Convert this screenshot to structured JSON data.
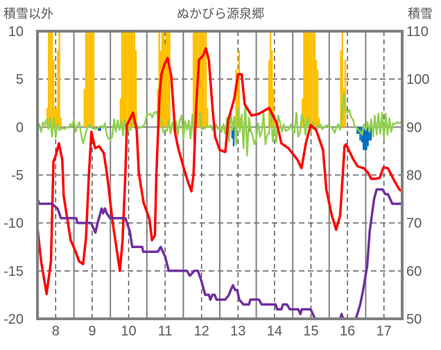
{
  "chart_data": {
    "type": "bar+line",
    "title": "ぬかびら源泉郷",
    "ylabel_left": "積雪以外",
    "ylabel_right": "積雪",
    "xlim": [
      7.5,
      17.5
    ],
    "ylim_left": [
      -20,
      10
    ],
    "ylim_right": [
      50,
      110
    ],
    "x_ticks": [
      "8",
      "9",
      "10",
      "11",
      "12",
      "13",
      "14",
      "15",
      "16",
      "17"
    ],
    "y_ticks_left": [
      "10",
      "5",
      "0",
      "-5",
      "-10",
      "-15",
      "-20"
    ],
    "y_ticks_right": [
      "110",
      "100",
      "90",
      "80",
      "70",
      "60",
      "50"
    ],
    "grid": true,
    "colors": {
      "precip": "#FFC000",
      "snow_loss": "#0070C0",
      "wind": "#92D050",
      "temp": "#FF0000",
      "snow_depth": "#7030A0",
      "axis": "#808080"
    },
    "precip_bars": [
      [
        7.77,
        2
      ],
      [
        7.81,
        10
      ],
      [
        7.85,
        10
      ],
      [
        7.9,
        10
      ],
      [
        7.94,
        7
      ],
      [
        7.98,
        2
      ],
      [
        8.02,
        2
      ],
      [
        8.06,
        8
      ],
      [
        8.1,
        10
      ],
      [
        8.14,
        1
      ],
      [
        8.79,
        4
      ],
      [
        8.83,
        10
      ],
      [
        8.87,
        10
      ],
      [
        8.92,
        10
      ],
      [
        8.96,
        10
      ],
      [
        9.0,
        10
      ],
      [
        9.04,
        10
      ],
      [
        9.78,
        3
      ],
      [
        9.82,
        10
      ],
      [
        9.86,
        10
      ],
      [
        9.9,
        10
      ],
      [
        9.94,
        10
      ],
      [
        9.99,
        10
      ],
      [
        10.03,
        10
      ],
      [
        10.07,
        10
      ],
      [
        10.11,
        10
      ],
      [
        10.16,
        10
      ],
      [
        10.2,
        8
      ],
      [
        10.8,
        4
      ],
      [
        10.84,
        10
      ],
      [
        10.88,
        8
      ],
      [
        10.92,
        10
      ],
      [
        10.96,
        10
      ],
      [
        11.0,
        8.7
      ],
      [
        11.04,
        10
      ],
      [
        11.08,
        10
      ],
      [
        11.12,
        10
      ],
      [
        11.78,
        10
      ],
      [
        11.82,
        10
      ],
      [
        11.86,
        10
      ],
      [
        11.9,
        10
      ],
      [
        11.95,
        10
      ],
      [
        11.99,
        10
      ],
      [
        12.03,
        10
      ],
      [
        12.07,
        10
      ],
      [
        12.12,
        10
      ],
      [
        12.16,
        2
      ],
      [
        12.95,
        6
      ],
      [
        12.99,
        5
      ],
      [
        13.03,
        8
      ],
      [
        13.07,
        1
      ],
      [
        13.85,
        7
      ],
      [
        13.89,
        10
      ],
      [
        13.93,
        8
      ],
      [
        13.97,
        4
      ],
      [
        14.01,
        1
      ],
      [
        14.05,
        0.7
      ],
      [
        14.77,
        3
      ],
      [
        14.81,
        10
      ],
      [
        14.85,
        10
      ],
      [
        14.89,
        10
      ],
      [
        14.93,
        10
      ],
      [
        14.97,
        10
      ],
      [
        15.01,
        10
      ],
      [
        15.06,
        10
      ],
      [
        15.1,
        10
      ],
      [
        15.14,
        7
      ],
      [
        15.18,
        6
      ],
      [
        15.22,
        1
      ],
      [
        15.82,
        8
      ],
      [
        15.86,
        10
      ],
      [
        15.9,
        4
      ],
      [
        15.94,
        7
      ]
    ],
    "snow_loss_bars": [
      [
        9.18,
        -0.4
      ],
      [
        9.22,
        -0.4
      ],
      [
        12.84,
        -1.2
      ],
      [
        12.88,
        -2
      ],
      [
        13.3,
        -0.5
      ],
      [
        13.34,
        -0.4
      ],
      [
        16.27,
        -0.7
      ],
      [
        16.31,
        -0.7
      ],
      [
        16.35,
        -1.4
      ],
      [
        16.4,
        -1.6
      ],
      [
        16.44,
        -2.4
      ],
      [
        16.48,
        -2.4
      ],
      [
        16.52,
        -2.4
      ],
      [
        16.56,
        -2
      ],
      [
        16.6,
        -1.4
      ],
      [
        16.64,
        -1.4
      ],
      [
        16.68,
        -0.5
      ]
    ],
    "temperature": [
      [
        7.5,
        -10.5
      ],
      [
        7.6,
        -14
      ],
      [
        7.75,
        -17.4
      ],
      [
        7.87,
        -14
      ],
      [
        7.94,
        -3.6
      ],
      [
        8.0,
        -3.0
      ],
      [
        8.09,
        -1.7
      ],
      [
        8.18,
        -3.4
      ],
      [
        8.22,
        -7.2
      ],
      [
        8.41,
        -11.8
      ],
      [
        8.55,
        -13
      ],
      [
        8.64,
        -14
      ],
      [
        8.75,
        -14.3
      ],
      [
        8.83,
        -11.6
      ],
      [
        8.91,
        -5
      ],
      [
        8.98,
        -0.5
      ],
      [
        9.08,
        -2.2
      ],
      [
        9.19,
        -2
      ],
      [
        9.32,
        -2.7
      ],
      [
        9.41,
        -5
      ],
      [
        9.56,
        -9.9
      ],
      [
        9.76,
        -15
      ],
      [
        9.83,
        -12
      ],
      [
        9.91,
        -5
      ],
      [
        9.95,
        0.2
      ],
      [
        10.12,
        1.5
      ],
      [
        10.22,
        -0.3
      ],
      [
        10.28,
        -4.8
      ],
      [
        10.41,
        -7.9
      ],
      [
        10.57,
        -9.6
      ],
      [
        10.64,
        -11.8
      ],
      [
        10.72,
        -11.3
      ],
      [
        10.76,
        -5
      ],
      [
        10.85,
        3.5
      ],
      [
        10.9,
        5.5
      ],
      [
        10.98,
        6.5
      ],
      [
        11.07,
        7.2
      ],
      [
        11.17,
        5.3
      ],
      [
        11.28,
        -0.7
      ],
      [
        11.36,
        -2.2
      ],
      [
        11.53,
        -4.5
      ],
      [
        11.61,
        -5.5
      ],
      [
        11.72,
        -6.7
      ],
      [
        11.78,
        -5
      ],
      [
        11.85,
        2
      ],
      [
        11.93,
        7
      ],
      [
        12.05,
        7.5
      ],
      [
        12.12,
        8.2
      ],
      [
        12.2,
        7
      ],
      [
        12.3,
        2
      ],
      [
        12.37,
        -1
      ],
      [
        12.5,
        -2.4
      ],
      [
        12.65,
        -2.6
      ],
      [
        12.73,
        0.7
      ],
      [
        12.9,
        3
      ],
      [
        13.0,
        5.5
      ],
      [
        13.1,
        5.5
      ],
      [
        13.18,
        2.4
      ],
      [
        13.37,
        1.2
      ],
      [
        13.58,
        1.4
      ],
      [
        13.85,
        2
      ],
      [
        14.06,
        0.4
      ],
      [
        14.19,
        -1.7
      ],
      [
        14.38,
        -2.2
      ],
      [
        14.63,
        -3.4
      ],
      [
        14.74,
        -4.3
      ],
      [
        14.86,
        -1.7
      ],
      [
        14.99,
        0.2
      ],
      [
        15.14,
        -0.3
      ],
      [
        15.33,
        -2.4
      ],
      [
        15.42,
        -6.5
      ],
      [
        15.57,
        -9.2
      ],
      [
        15.69,
        -10.7
      ],
      [
        15.8,
        -9.2
      ],
      [
        15.87,
        -5
      ],
      [
        15.92,
        -2
      ],
      [
        15.96,
        -1.8
      ],
      [
        16.05,
        -2.5
      ],
      [
        16.15,
        -3.3
      ],
      [
        16.28,
        -4.1
      ],
      [
        16.45,
        -4.3
      ],
      [
        16.57,
        -4.8
      ],
      [
        16.65,
        -5.4
      ],
      [
        16.77,
        -5.4
      ],
      [
        16.88,
        -5.3
      ],
      [
        16.99,
        -4.2
      ],
      [
        17.11,
        -4.3
      ],
      [
        17.27,
        -5.5
      ],
      [
        17.42,
        -6.5
      ],
      [
        17.5,
        -6.7
      ]
    ],
    "snow_depth": [
      [
        7.5,
        75
      ],
      [
        7.55,
        74
      ],
      [
        7.9,
        74
      ],
      [
        8.05,
        73
      ],
      [
        8.1,
        72
      ],
      [
        8.14,
        71
      ],
      [
        8.56,
        71
      ],
      [
        8.6,
        70
      ],
      [
        8.97,
        70
      ],
      [
        9.09,
        68
      ],
      [
        9.15,
        70
      ],
      [
        9.26,
        73
      ],
      [
        9.3,
        72
      ],
      [
        9.35,
        73
      ],
      [
        9.4,
        72
      ],
      [
        9.49,
        71
      ],
      [
        9.91,
        71
      ],
      [
        10.03,
        68.3
      ],
      [
        10.1,
        65
      ],
      [
        10.37,
        65
      ],
      [
        10.4,
        64
      ],
      [
        10.8,
        64
      ],
      [
        10.88,
        65
      ],
      [
        11.0,
        63
      ],
      [
        11.1,
        60
      ],
      [
        11.6,
        60
      ],
      [
        11.68,
        59
      ],
      [
        11.8,
        60
      ],
      [
        11.9,
        60
      ],
      [
        11.99,
        58
      ],
      [
        12.1,
        55
      ],
      [
        12.2,
        55
      ],
      [
        12.24,
        54
      ],
      [
        12.3,
        55
      ],
      [
        12.36,
        55
      ],
      [
        12.41,
        54
      ],
      [
        12.65,
        54
      ],
      [
        12.75,
        55
      ],
      [
        12.8,
        56
      ],
      [
        12.86,
        57
      ],
      [
        12.92,
        56
      ],
      [
        12.98,
        56
      ],
      [
        13.03,
        54
      ],
      [
        13.15,
        53
      ],
      [
        13.3,
        53
      ],
      [
        13.34,
        54
      ],
      [
        13.57,
        54
      ],
      [
        13.65,
        53
      ],
      [
        14.03,
        53
      ],
      [
        14.07,
        52
      ],
      [
        14.19,
        52
      ],
      [
        14.23,
        53
      ],
      [
        14.34,
        53
      ],
      [
        14.42,
        52
      ],
      [
        14.65,
        52
      ],
      [
        14.71,
        51
      ],
      [
        14.75,
        52
      ],
      [
        14.99,
        52
      ],
      [
        15.11,
        50
      ],
      [
        15.8,
        50
      ],
      [
        15.84,
        51
      ],
      [
        15.88,
        50
      ],
      [
        16.23,
        50
      ],
      [
        16.35,
        53
      ],
      [
        16.43,
        56
      ],
      [
        16.54,
        61
      ],
      [
        16.61,
        68.3
      ],
      [
        16.73,
        75
      ],
      [
        16.8,
        77
      ],
      [
        16.96,
        77
      ],
      [
        17.04,
        76
      ],
      [
        17.11,
        76
      ],
      [
        17.23,
        74
      ],
      [
        17.5,
        74
      ]
    ],
    "other_series_start": 7.5,
    "other_series_step": 0.05,
    "other_series": [
      -0.4,
      0.3,
      -0.5,
      0.5,
      0.2,
      0.8,
      -0.2,
      1.0,
      -1.0,
      0.9,
      -1.1,
      0.3,
      -0.3,
      -0.2,
      -0.1,
      -0.2,
      0.0,
      -0.1,
      0.3,
      0.1,
      0.8,
      -0.5,
      0.2,
      0.5,
      -0.8,
      -1.7,
      -1.0,
      -0.3,
      0.2,
      0.2,
      -0.1,
      -0.2,
      -0.2,
      -0.1,
      0.0,
      0.1,
      -0.1,
      0.4,
      -0.8,
      -1.2,
      -1.3,
      -1.0,
      0.8,
      -0.5,
      0.7,
      -0.3,
      0.6,
      -0.9,
      0.8,
      -0.8,
      -0.2,
      -0.3,
      0.4,
      0.3,
      0.5,
      -0.1,
      -0.1,
      0.0,
      0.1,
      0.4,
      1.3,
      1.3,
      1.4,
      1.0,
      1.5,
      1.6,
      1.2,
      1.0,
      0.5,
      -0.6,
      -0.3,
      -0.4,
      0.7,
      -0.7,
      0.5,
      -0.5,
      0.6,
      -0.8,
      0.7,
      1.2,
      -1.2,
      0.6,
      -0.3,
      0.7,
      -1.2,
      1.3,
      -1.6,
      1.5,
      1.2,
      1.4,
      -0.2,
      -0.2,
      -0.1,
      0.1,
      0.0,
      0.2,
      -0.3,
      0.0,
      0.3,
      -0.2,
      0.0,
      -0.5,
      0.3,
      -0.7,
      1.0,
      -1.5,
      1.6,
      -0.3,
      1.1,
      -1.8,
      2.0,
      -0.5,
      1.3,
      -2.2,
      2.5,
      -3.0,
      1.0,
      -0.4,
      -0.9,
      -1.8,
      -1.2,
      0.4,
      -1.0,
      -0.5,
      1.5,
      -1.8,
      -0.8,
      -0.7,
      2.0,
      -1.5,
      0.1,
      -1.6,
      1.2,
      0.5,
      -0.5,
      0.3,
      -0.4,
      -0.3,
      -0.2,
      0.3,
      -0.5,
      -0.6,
      1.5,
      -1.0,
      -0.6,
      1.3,
      0.6,
      -0.8,
      1.0,
      0.3,
      -0.5,
      0.5,
      -0.2,
      -0.3,
      0.2,
      0.3,
      -0.2,
      -0.1,
      0.1,
      0.2,
      -0.1,
      0.0,
      -0.2,
      -0.6,
      0.0,
      0.3,
      -0.3,
      1.2,
      3.5,
      2.0,
      1.5,
      1.8,
      1.0,
      0.8,
      0.1,
      -0.1,
      -0.3,
      -0.5,
      -0.8,
      0.3,
      -0.3,
      0.5,
      -0.5,
      0.8,
      -1.0,
      1.2,
      -0.8,
      1.4,
      -0.7,
      1.5,
      -1.3,
      1.4,
      -0.8,
      0.9,
      -0.5,
      0.4,
      0.3,
      0.5,
      0.4,
      0.5,
      0.6
    ]
  }
}
